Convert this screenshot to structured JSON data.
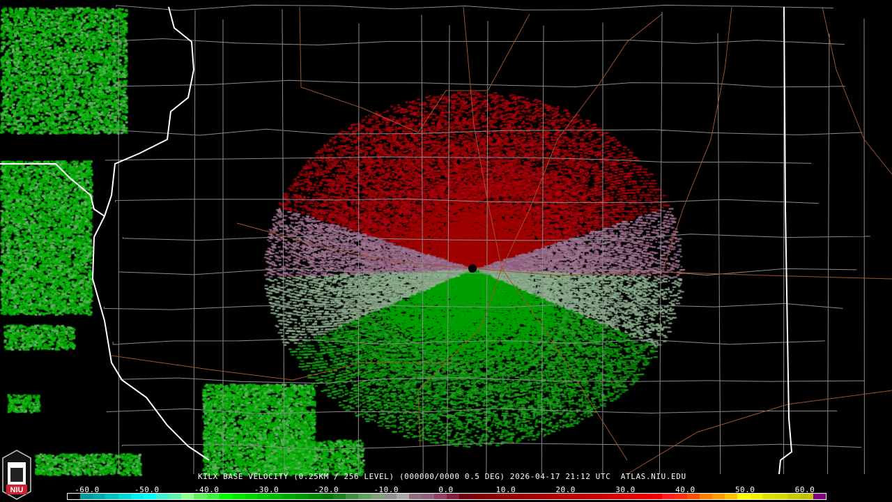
{
  "caption": {
    "station": "KILX",
    "product": "BASE VELOCITY",
    "resolution": "(0.25KM / 256 LEVEL)",
    "volume": "(000000/0000 0.5 DEG)",
    "datetime": "2026-04-17 21:12 UTC",
    "source": "ATLAS.NIU.EDU"
  },
  "logo": {
    "text": "NIU",
    "colors": {
      "red": "#d0202e",
      "gray": "#c8c8c8"
    }
  },
  "colorbar": {
    "labels": [
      "-60.0",
      "-50.0",
      "-40.0",
      "-30.0",
      "-20.0",
      "-10.0",
      "0.0",
      "10.0",
      "20.0",
      "30.0",
      "40.0",
      "50.0",
      "60.0"
    ],
    "values": [
      -60,
      -50,
      -40,
      -30,
      -20,
      -10,
      0,
      10,
      20,
      30,
      40,
      50,
      60
    ],
    "colors": [
      "#000000",
      "#009a9a",
      "#00aaaa",
      "#00c0c0",
      "#00d8d8",
      "#00f0f0",
      "#00ffff",
      "#40f0d0",
      "#60f0b0",
      "#90ff90",
      "#60f060",
      "#40f040",
      "#00ff00",
      "#00e800",
      "#00d800",
      "#00c800",
      "#00b800",
      "#00a800",
      "#009800",
      "#008800",
      "#007800",
      "#208020",
      "#409040",
      "#60a060",
      "#80a080",
      "#909090",
      "#a8a8a8",
      "#907080",
      "#906080",
      "#904060",
      "#802040",
      "#700010",
      "#800000",
      "#880000",
      "#900000",
      "#980000",
      "#a00000",
      "#a80000",
      "#b00000",
      "#b80000",
      "#c00000",
      "#c80000",
      "#d00000",
      "#d80000",
      "#e00000",
      "#e80000",
      "#f00000",
      "#ff2020",
      "#ff3010",
      "#ff5000",
      "#ff8000",
      "#ffa000",
      "#ffc000",
      "#ffff00",
      "#f0f000",
      "#e0e000",
      "#d8d800",
      "#c8c800",
      "#c0c000",
      "#800080"
    ]
  },
  "map_colors": {
    "county": "#8c8c8c",
    "state": "#ffffff",
    "highway": "#a0522d",
    "radar_site": "#000000"
  }
}
